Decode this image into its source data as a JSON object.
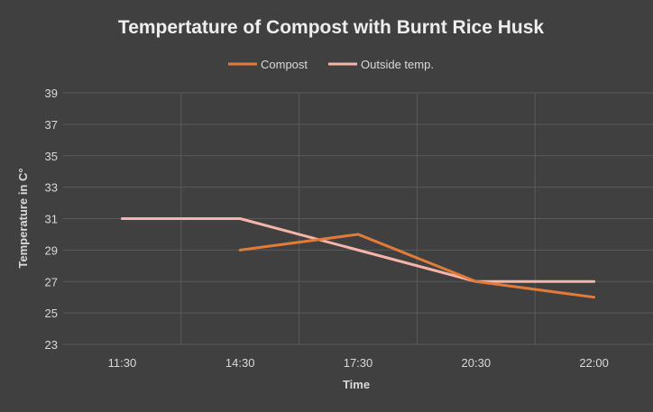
{
  "chart_data": {
    "type": "line",
    "title": "Tempertature of Compost with Burnt Rice Husk",
    "xlabel": "Time",
    "ylabel": "Temperature in C°",
    "categories": [
      "11:30",
      "14:30",
      "17:30",
      "20:30",
      "22:00"
    ],
    "ylim": [
      23,
      39
    ],
    "yticks": [
      23,
      25,
      27,
      29,
      31,
      33,
      35,
      37,
      39
    ],
    "grid": true,
    "legend_position": "top",
    "series": [
      {
        "name": "Compost",
        "values": [
          null,
          29,
          30,
          27,
          26
        ],
        "color": "#e07b39"
      },
      {
        "name": "Outside temp.",
        "values": [
          31,
          31,
          29,
          27,
          27
        ],
        "color": "#f5b5a8"
      }
    ]
  },
  "colors": {
    "background": "#404040",
    "grid": "#5a5a5a",
    "text": "#d9d9d9",
    "title": "#eeeeee"
  }
}
